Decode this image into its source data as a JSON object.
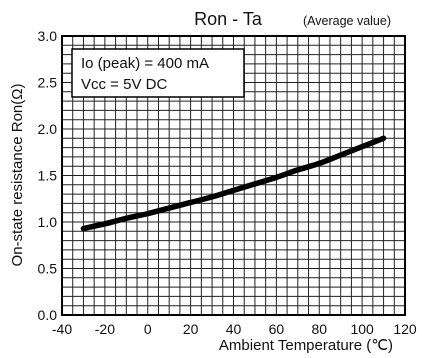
{
  "chart_data": {
    "type": "line",
    "title": "Ron - Ta",
    "subtitle": "(Average value)",
    "xlabel": "Ambient Temperature (℃)",
    "ylabel": "On-state resistance Ron(Ω)",
    "xlim": [
      -40,
      120
    ],
    "ylim": [
      0.0,
      3.0
    ],
    "xticks": [
      -40,
      -20,
      0,
      20,
      40,
      60,
      80,
      100,
      120
    ],
    "yticks": [
      0.0,
      0.5,
      1.0,
      1.5,
      2.0,
      2.5,
      3.0
    ],
    "xtick_labels": [
      "-40",
      "-20",
      "0",
      "20",
      "40",
      "60",
      "80",
      "100",
      "120"
    ],
    "ytick_labels": [
      "0.0",
      "0.5",
      "1.0",
      "1.5",
      "2.0",
      "2.5",
      "3.0"
    ],
    "grid": true,
    "annotation": [
      "Io (peak) = 400 mA",
      "Vcc = 5V DC"
    ],
    "series": [
      {
        "x": [
          -30,
          -20,
          -10,
          0,
          10,
          20,
          30,
          40,
          50,
          60,
          70,
          80,
          90,
          100,
          110
        ],
        "y": [
          0.93,
          0.98,
          1.04,
          1.09,
          1.15,
          1.21,
          1.27,
          1.34,
          1.41,
          1.48,
          1.56,
          1.63,
          1.72,
          1.81,
          1.9
        ]
      }
    ]
  }
}
